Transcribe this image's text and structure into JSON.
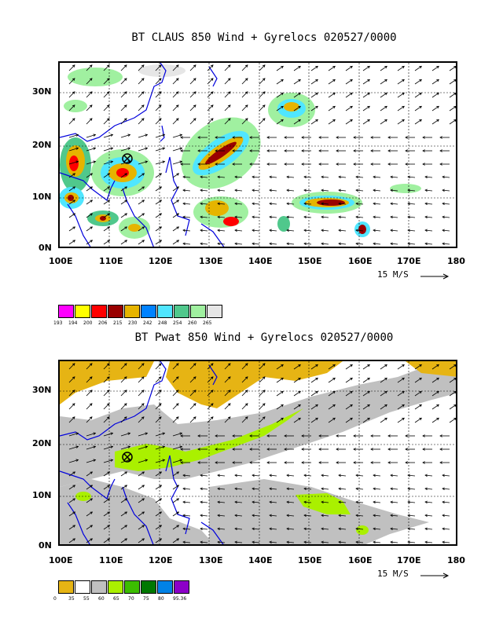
{
  "panels": [
    {
      "title": "BT CLAUS 850 Wind + Gyrelocs 020527/0000",
      "y_ticks": [
        "30N",
        "20N",
        "10N",
        "0N"
      ],
      "x_ticks": [
        "100E",
        "110E",
        "120E",
        "130E",
        "140E",
        "150E",
        "160E",
        "170E",
        "180"
      ],
      "ref_vector": "15 M/S",
      "legend_colors": [
        "#ff00ff",
        "#ffff00",
        "#ff0000",
        "#990000",
        "#e6b400",
        "#0082ff",
        "#50e6ff",
        "#50c88c",
        "#a0f0a0",
        "#e6e6e6"
      ],
      "legend_labels": [
        "193",
        "194",
        "200",
        "206",
        "215",
        "230",
        "242",
        "248",
        "254",
        "260",
        "265"
      ]
    },
    {
      "title": "BT Pwat 850 Wind + Gyrelocs 020527/0000",
      "y_ticks": [
        "30N",
        "20N",
        "10N",
        "0N"
      ],
      "x_ticks": [
        "100E",
        "110E",
        "120E",
        "130E",
        "140E",
        "150E",
        "160E",
        "170E",
        "180"
      ],
      "ref_vector": "15 M/S",
      "legend_colors": [
        "#e6b414",
        "#ffffff",
        "#c0c0c0",
        "#aaf000",
        "#3cbe00",
        "#007800",
        "#0082e6",
        "#8c00c8"
      ],
      "legend_labels": [
        "0",
        "35",
        "55",
        "60",
        "65",
        "70",
        "75",
        "80",
        "95.36"
      ]
    }
  ],
  "map": {
    "lon_range": [
      100,
      180
    ],
    "lat_range": [
      0,
      35
    ],
    "gyre_marker": {
      "lon": 113.5,
      "lat": 18.5
    }
  }
}
